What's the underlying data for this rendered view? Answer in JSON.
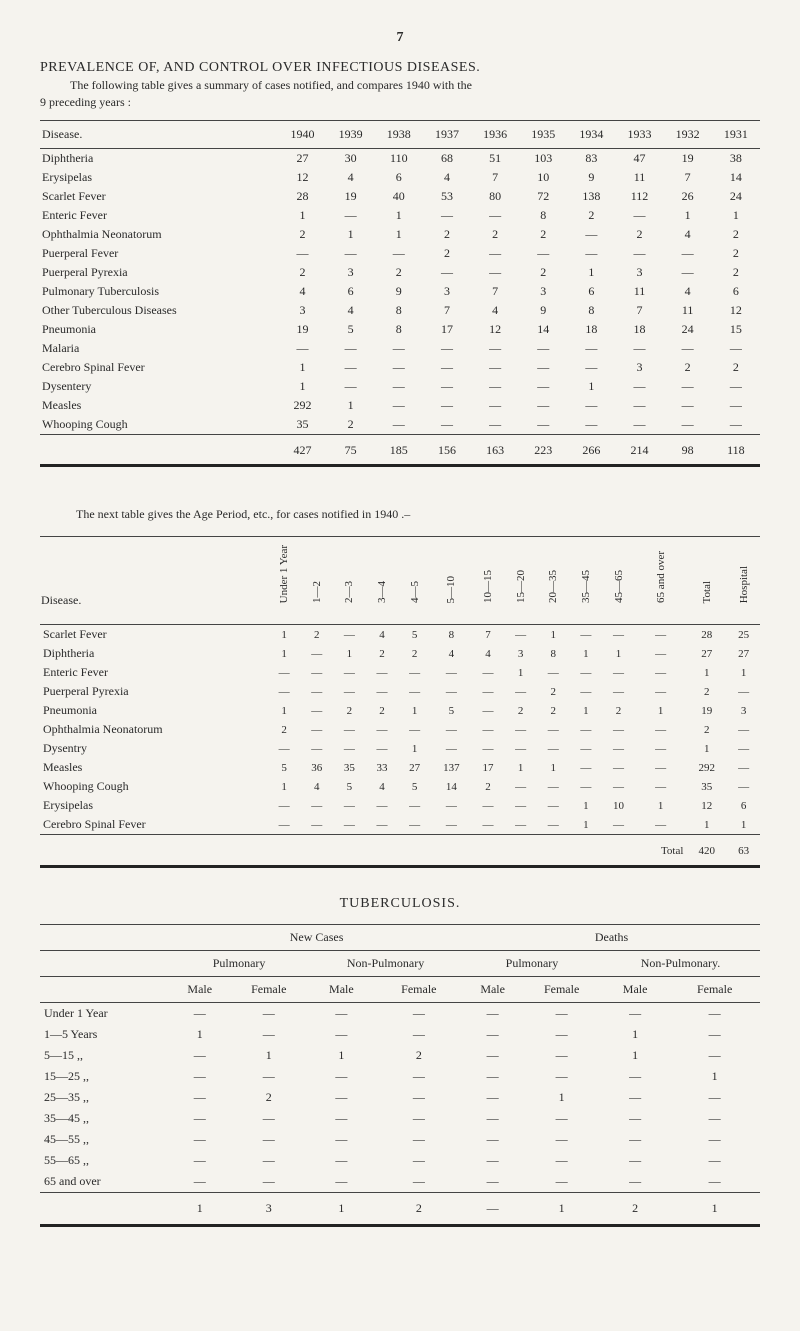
{
  "page_number": "7",
  "heading": "PREVALENCE OF, AND CONTROL OVER INFECTIOUS DISEASES.",
  "subheading_1": "The following table gives a summary of cases notified, and compares 1940 with the",
  "subheading_2": "9 preceding years :",
  "table1": {
    "col0": "Disease.",
    "years": [
      "1940",
      "1939",
      "1938",
      "1937",
      "1936",
      "1935",
      "1934",
      "1933",
      "1932",
      "1931"
    ],
    "rows": [
      {
        "label": "Diphtheria",
        "v": [
          "27",
          "30",
          "110",
          "68",
          "51",
          "103",
          "83",
          "47",
          "19",
          "38"
        ]
      },
      {
        "label": "Erysipelas",
        "v": [
          "12",
          "4",
          "6",
          "4",
          "7",
          "10",
          "9",
          "11",
          "7",
          "14"
        ]
      },
      {
        "label": "Scarlet Fever",
        "v": [
          "28",
          "19",
          "40",
          "53",
          "80",
          "72",
          "138",
          "112",
          "26",
          "24"
        ]
      },
      {
        "label": "Enteric Fever",
        "v": [
          "1",
          "—",
          "1",
          "—",
          "—",
          "8",
          "2",
          "—",
          "1",
          "1"
        ]
      },
      {
        "label": "Ophthalmia Neonatorum",
        "v": [
          "2",
          "1",
          "1",
          "2",
          "2",
          "2",
          "—",
          "2",
          "4",
          "2"
        ]
      },
      {
        "label": "Puerperal Fever",
        "v": [
          "—",
          "—",
          "—",
          "2",
          "—",
          "—",
          "—",
          "—",
          "—",
          "2"
        ]
      },
      {
        "label": "Puerperal Pyrexia",
        "v": [
          "2",
          "3",
          "2",
          "—",
          "—",
          "2",
          "1",
          "3",
          "—",
          "2"
        ]
      },
      {
        "label": "Pulmonary Tuberculosis",
        "v": [
          "4",
          "6",
          "9",
          "3",
          "7",
          "3",
          "6",
          "11",
          "4",
          "6"
        ]
      },
      {
        "label": "Other Tuberculous Diseases",
        "v": [
          "3",
          "4",
          "8",
          "7",
          "4",
          "9",
          "8",
          "7",
          "11",
          "12"
        ]
      },
      {
        "label": "Pneumonia",
        "v": [
          "19",
          "5",
          "8",
          "17",
          "12",
          "14",
          "18",
          "18",
          "24",
          "15"
        ]
      },
      {
        "label": "Malaria",
        "v": [
          "—",
          "—",
          "—",
          "—",
          "—",
          "—",
          "—",
          "—",
          "—",
          "—"
        ]
      },
      {
        "label": "Cerebro Spinal Fever",
        "v": [
          "1",
          "—",
          "—",
          "—",
          "—",
          "—",
          "—",
          "3",
          "2",
          "2"
        ]
      },
      {
        "label": "Dysentery",
        "v": [
          "1",
          "—",
          "—",
          "—",
          "—",
          "—",
          "1",
          "—",
          "—",
          "—"
        ]
      },
      {
        "label": "Measles",
        "v": [
          "292",
          "1",
          "—",
          "—",
          "—",
          "—",
          "—",
          "—",
          "—",
          "—"
        ]
      },
      {
        "label": "Whooping Cough",
        "v": [
          "35",
          "2",
          "—",
          "—",
          "—",
          "—",
          "—",
          "—",
          "—",
          "—"
        ]
      }
    ],
    "totals": [
      "427",
      "75",
      "185",
      "156",
      "163",
      "223",
      "266",
      "214",
      "98",
      "118"
    ]
  },
  "inter_text": "The next table gives the Age Period, etc., for cases notified in 1940 .–",
  "table2": {
    "head": {
      "disease": "Disease.",
      "under1": "Under\n1 Year",
      "c1": "1—2",
      "c2": "2—3",
      "c3": "3—4",
      "c4": "4—5",
      "c5": "5—10",
      "c6": "10—15",
      "c7": "15—20",
      "c8": "20—35",
      "c9": "35—45",
      "c10": "45—65",
      "c11": "65 and over",
      "total": "Total",
      "hosp": "Hospital"
    },
    "rows": [
      {
        "label": "Scarlet Fever",
        "v": [
          "1",
          "2",
          "—",
          "4",
          "5",
          "8",
          "7",
          "—",
          "1",
          "—",
          "—",
          "—",
          "28",
          "25"
        ]
      },
      {
        "label": "Diphtheria",
        "v": [
          "1",
          "—",
          "1",
          "2",
          "2",
          "4",
          "4",
          "3",
          "8",
          "1",
          "1",
          "—",
          "27",
          "27"
        ]
      },
      {
        "label": "Enteric Fever",
        "v": [
          "—",
          "—",
          "—",
          "—",
          "—",
          "—",
          "—",
          "1",
          "—",
          "—",
          "—",
          "—",
          "1",
          "1"
        ]
      },
      {
        "label": "Puerperal Pyrexia",
        "v": [
          "—",
          "—",
          "—",
          "—",
          "—",
          "—",
          "—",
          "—",
          "2",
          "—",
          "—",
          "—",
          "2",
          "—"
        ]
      },
      {
        "label": "Pneumonia",
        "v": [
          "1",
          "—",
          "2",
          "2",
          "1",
          "5",
          "—",
          "2",
          "2",
          "1",
          "2",
          "1",
          "19",
          "3"
        ]
      },
      {
        "label": "Ophthalmia Neonatorum",
        "v": [
          "2",
          "—",
          "—",
          "—",
          "—",
          "—",
          "—",
          "—",
          "—",
          "—",
          "—",
          "—",
          "2",
          "—"
        ]
      },
      {
        "label": "Dysentry",
        "v": [
          "—",
          "—",
          "—",
          "—",
          "1",
          "—",
          "—",
          "—",
          "—",
          "—",
          "—",
          "—",
          "1",
          "—"
        ]
      },
      {
        "label": "Measles",
        "v": [
          "5",
          "36",
          "35",
          "33",
          "27",
          "137",
          "17",
          "1",
          "1",
          "—",
          "—",
          "—",
          "292",
          "—"
        ]
      },
      {
        "label": "Whooping Cough",
        "v": [
          "1",
          "4",
          "5",
          "4",
          "5",
          "14",
          "2",
          "—",
          "—",
          "—",
          "—",
          "—",
          "35",
          "—"
        ]
      },
      {
        "label": "Erysipelas",
        "v": [
          "—",
          "—",
          "—",
          "—",
          "—",
          "—",
          "—",
          "—",
          "—",
          "1",
          "10",
          "1",
          "12",
          "6"
        ]
      },
      {
        "label": "Cerebro Spinal Fever",
        "v": [
          "—",
          "—",
          "—",
          "—",
          "—",
          "—",
          "—",
          "—",
          "—",
          "1",
          "—",
          "—",
          "1",
          "1"
        ]
      }
    ],
    "total_label": "Total",
    "total_vals": [
      "420",
      "63"
    ]
  },
  "tb_heading": "TUBERCULOSIS.",
  "table3": {
    "lvl1": {
      "new": "New Cases",
      "deaths": "Deaths"
    },
    "lvl2": {
      "pulm": "Pulmonary",
      "nonp": "Non-Pulmonary",
      "pulm2": "Pulmonary",
      "nonp2": "Non-Pulmonary."
    },
    "lvl3": {
      "m": "Male",
      "f": "Female",
      "m2": "Male",
      "f2": "Female",
      "m3": "Male",
      "f3": "Female",
      "m4": "Male",
      "f4": "Female"
    },
    "rows": [
      {
        "label": "Under 1 Year",
        "v": [
          "—",
          "—",
          "—",
          "—",
          "—",
          "—",
          "—",
          "—"
        ]
      },
      {
        "label": "1—5 Years",
        "v": [
          "1",
          "—",
          "—",
          "—",
          "—",
          "—",
          "1",
          "—"
        ]
      },
      {
        "label": "5—15  ,,",
        "v": [
          "—",
          "1",
          "1",
          "2",
          "—",
          "—",
          "1",
          "—"
        ]
      },
      {
        "label": "15—25 ,,",
        "v": [
          "—",
          "—",
          "—",
          "—",
          "—",
          "—",
          "—",
          "1"
        ]
      },
      {
        "label": "25—35 ,,",
        "v": [
          "—",
          "2",
          "—",
          "—",
          "—",
          "1",
          "—",
          "—"
        ]
      },
      {
        "label": "35—45 ,,",
        "v": [
          "—",
          "—",
          "—",
          "—",
          "—",
          "—",
          "—",
          "—"
        ]
      },
      {
        "label": "45—55 ,,",
        "v": [
          "—",
          "—",
          "—",
          "—",
          "—",
          "—",
          "—",
          "—"
        ]
      },
      {
        "label": "55—65 ,,",
        "v": [
          "—",
          "—",
          "—",
          "—",
          "—",
          "—",
          "—",
          "—"
        ]
      },
      {
        "label": "65 and over",
        "v": [
          "—",
          "—",
          "—",
          "—",
          "—",
          "—",
          "—",
          "—"
        ]
      }
    ],
    "totals": [
      "1",
      "3",
      "1",
      "2",
      "—",
      "1",
      "2",
      "1"
    ]
  }
}
